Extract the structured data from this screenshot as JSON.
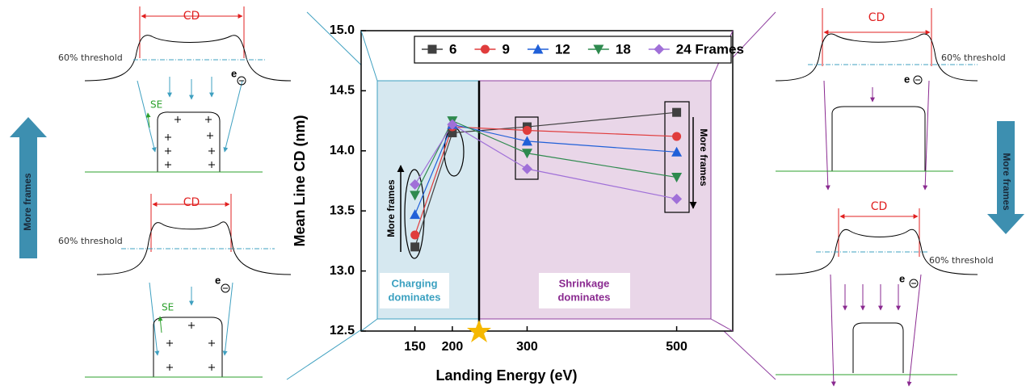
{
  "chart_data": {
    "type": "line",
    "xlabel": "Landing Energy (eV)",
    "ylabel": "Mean Line CD (nm)",
    "x": [
      150,
      200,
      300,
      500
    ],
    "series": [
      {
        "name": "6",
        "color": "#404040",
        "marker": "square",
        "values": [
          13.2,
          14.15,
          14.2,
          14.32
        ]
      },
      {
        "name": "9",
        "color": "#e03c3c",
        "marker": "circle",
        "values": [
          13.3,
          14.2,
          14.17,
          14.12
        ]
      },
      {
        "name": "12",
        "color": "#2060d8",
        "marker": "triangle-up",
        "values": [
          13.47,
          14.22,
          14.08,
          13.99
        ]
      },
      {
        "name": "18",
        "color": "#2e8a4e",
        "marker": "triangle-down",
        "values": [
          13.63,
          14.25,
          13.98,
          13.78
        ]
      },
      {
        "name": "24 Frames",
        "color": "#a070d8",
        "marker": "diamond",
        "values": [
          13.72,
          14.22,
          13.85,
          13.6
        ]
      }
    ],
    "xlim": [
      78,
      575
    ],
    "xticks": [
      150,
      200,
      300,
      500
    ],
    "ylim": [
      12.5,
      15.0
    ],
    "yticks": [
      12.5,
      {
        "value": 13.0,
        "label": "13.0"
      },
      13.5,
      {
        "value": 14.0,
        "label": "14.0"
      },
      14.5,
      {
        "value": 15.0,
        "label": "15.0"
      }
    ],
    "legend": "top-right",
    "regions": {
      "charging": [
        "Charging",
        "dominates"
      ],
      "shrinkage": [
        "Shrinkage",
        "dominates"
      ]
    },
    "annotations": {
      "left": "More frames",
      "right": "More frames"
    }
  },
  "side_arrows": {
    "left": "More frames",
    "right": "More frames"
  },
  "left_top": {
    "cd": "CD",
    "threshold": "60% threshold",
    "electron": "e",
    "secondary": "SE"
  },
  "left_bottom": {
    "cd": "CD",
    "threshold": "60% threshold",
    "electron": "e",
    "secondary": "SE"
  },
  "right_top": {
    "cd": "CD",
    "threshold": "60% threshold",
    "electron": "e"
  },
  "right_bottom": {
    "cd": "CD",
    "threshold": "60% threshold",
    "electron": "e"
  }
}
